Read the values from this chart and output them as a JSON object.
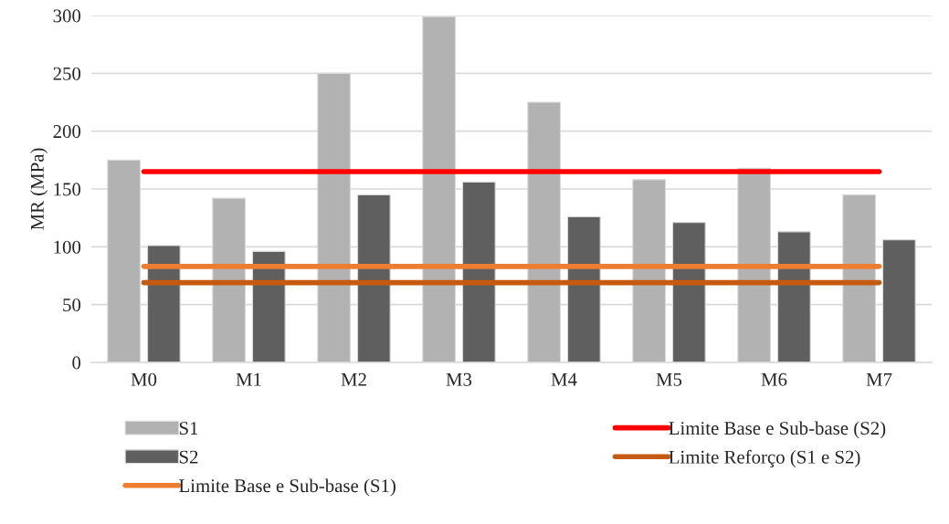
{
  "chart_data": {
    "type": "bar",
    "ylabel": "MR (MPa)",
    "categories": [
      "M0",
      "M1",
      "M2",
      "M3",
      "M4",
      "M5",
      "M6",
      "M7"
    ],
    "series": [
      {
        "name": "S1",
        "color": "#b2b2b2",
        "values": [
          175,
          142,
          250,
          299,
          225,
          158,
          168,
          145
        ]
      },
      {
        "name": "S2",
        "color": "#5f5f5f",
        "values": [
          101,
          96,
          145,
          156,
          126,
          121,
          113,
          106
        ]
      },
      {
        "name": "Limite Base e Sub-base (S1)",
        "type": "line",
        "color": "#ed7d31",
        "values": [
          83,
          83,
          83,
          83,
          83,
          83,
          83,
          83
        ]
      },
      {
        "name": "Limite Base e Sub-base (S2)",
        "type": "line",
        "color": "#ff0000",
        "values": [
          165,
          165,
          165,
          165,
          165,
          165,
          165,
          165
        ]
      },
      {
        "name": "Limite Reforço (S1 e S2)",
        "type": "line",
        "color": "#c55a11",
        "values": [
          69,
          69,
          69,
          69,
          69,
          69,
          69,
          69
        ]
      }
    ],
    "ylim": [
      0,
      300
    ],
    "yticks": [
      0,
      50,
      100,
      150,
      200,
      250,
      300
    ],
    "grid": "y",
    "legend": "bottom",
    "marker": "none",
    "line_style": "solid"
  }
}
